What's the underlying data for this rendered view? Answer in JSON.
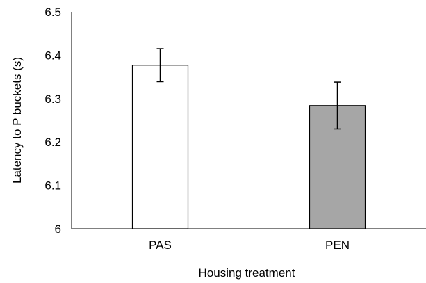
{
  "chart_data": {
    "type": "bar",
    "title": "",
    "xlabel": "Housing treatment",
    "ylabel": "Latency to P buckets (s)",
    "categories": [
      "PAS",
      "PEN"
    ],
    "values": [
      6.377,
      6.284
    ],
    "error": [
      0.038,
      0.054
    ],
    "ylim": [
      6,
      6.5
    ],
    "yticks": [
      "6",
      "6.1",
      "6.2",
      "6.3",
      "6.4",
      "6.5"
    ],
    "grid": false,
    "bar_fill": [
      "#ffffff",
      "#a6a6a6"
    ],
    "bar_stroke": "#000000"
  }
}
